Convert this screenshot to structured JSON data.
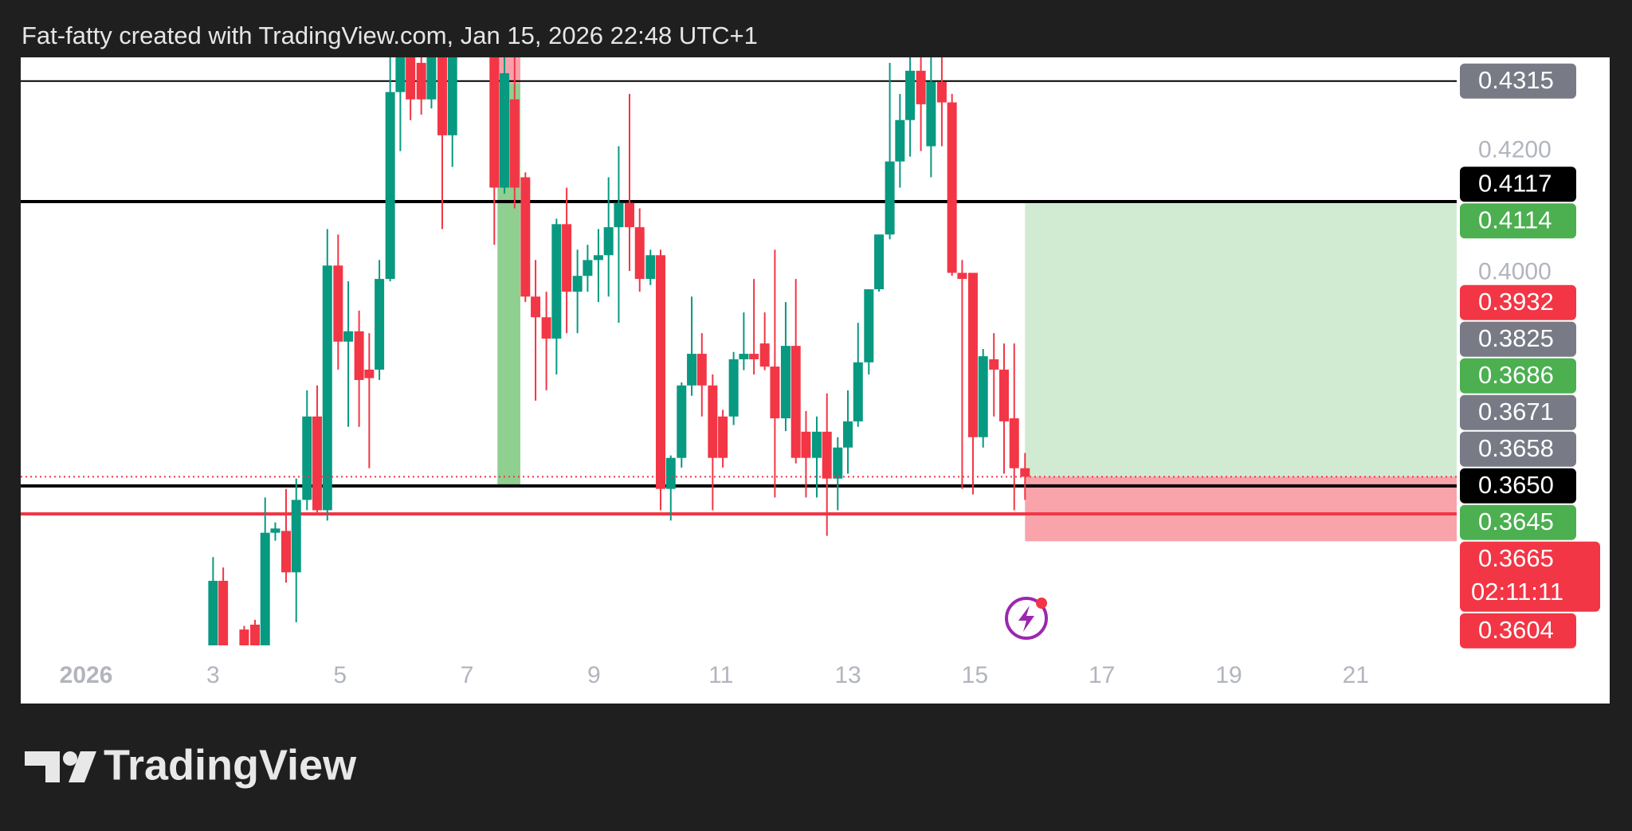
{
  "chart_data": {
    "type": "candlestick",
    "title": "Fat-fatty created with TradingView.com, Jan 15, 2026 22:48 UTC+1",
    "branding": "TradingView",
    "up_color": "#089981",
    "down_color": "#f23645",
    "xlim": [
      -0.03,
      22.59
    ],
    "ylim": [
      0.3388,
      0.4354
    ],
    "xticks": [
      {
        "value": 1,
        "label": "2026"
      },
      3,
      5,
      7,
      9,
      11,
      13,
      15,
      17,
      19,
      21
    ],
    "yticks": [
      {
        "value": 0.42,
        "label": "0.4200"
      },
      {
        "value": 0.4,
        "label": "0.4000"
      }
    ],
    "x": [
      3.0,
      3.16,
      3.49,
      3.66,
      3.82,
      3.98,
      4.15,
      4.31,
      4.48,
      4.64,
      4.8,
      4.97,
      5.13,
      5.3,
      5.46,
      5.62,
      5.79,
      5.95,
      6.11,
      6.28,
      6.44,
      6.61,
      6.77,
      7.43,
      7.59,
      7.75,
      7.92,
      8.08,
      8.25,
      8.41,
      8.57,
      8.74,
      8.9,
      9.07,
      9.23,
      9.39,
      9.56,
      9.72,
      9.89,
      10.05,
      10.21,
      10.38,
      10.54,
      10.7,
      10.87,
      11.03,
      11.2,
      11.36,
      11.52,
      11.69,
      11.85,
      12.02,
      12.18,
      12.34,
      12.51,
      12.67,
      12.84,
      13.0,
      13.16,
      13.33,
      13.49,
      13.66,
      13.82,
      13.98,
      14.15,
      14.31,
      14.48,
      14.64,
      14.8,
      14.97,
      15.13,
      15.3,
      15.46,
      15.62,
      15.79
    ],
    "open": [
      0.3388,
      0.3494,
      0.3414,
      0.3422,
      0.3388,
      0.3573,
      0.3576,
      0.3508,
      0.3627,
      0.3764,
      0.361,
      0.4012,
      0.3887,
      0.3904,
      0.3841,
      0.3841,
      0.399,
      0.4297,
      0.4354,
      0.4345,
      0.4285,
      0.4354,
      0.4226,
      0.4354,
      0.414,
      0.4285,
      0.4157,
      0.3961,
      0.3927,
      0.3892,
      0.408,
      0.3969,
      0.3995,
      0.4021,
      0.4029,
      0.4075,
      0.4115,
      0.4075,
      0.399,
      0.4029,
      0.3645,
      0.3696,
      0.3815,
      0.3867,
      0.3815,
      0.3764,
      0.3764,
      0.3858,
      0.3867,
      0.3884,
      0.3846,
      0.3761,
      0.388,
      0.3739,
      0.3696,
      0.3739,
      0.3662,
      0.3713,
      0.3756,
      0.3853,
      0.3973,
      0.4063,
      0.4183,
      0.4251,
      0.4332,
      0.4208,
      0.4314,
      0.428,
      0.4,
      0.4,
      0.373,
      0.3858,
      0.3841,
      0.3761,
      0.3679
    ],
    "high": [
      0.3533,
      0.3516,
      0.342,
      0.343,
      0.3631,
      0.359,
      0.3645,
      0.3662,
      0.3807,
      0.3815,
      0.4072,
      0.4063,
      0.3986,
      0.3938,
      0.3901,
      0.4021,
      0.4354,
      0.4354,
      0.4354,
      0.4354,
      0.4354,
      0.4354,
      0.4354,
      0.4354,
      0.4354,
      0.4354,
      0.4165,
      0.4021,
      0.3969,
      0.4089,
      0.414,
      0.4038,
      0.4046,
      0.4072,
      0.4157,
      0.4208,
      0.4294,
      0.4106,
      0.4038,
      0.4038,
      0.37,
      0.382,
      0.3961,
      0.3901,
      0.3833,
      0.3775,
      0.387,
      0.3935,
      0.399,
      0.3935,
      0.4038,
      0.3952,
      0.399,
      0.3773,
      0.3764,
      0.3802,
      0.373,
      0.3807,
      0.3918,
      0.3973,
      0.4063,
      0.4345,
      0.4294,
      0.4354,
      0.4354,
      0.4354,
      0.4354,
      0.4294,
      0.4021,
      0.4,
      0.3875,
      0.3901,
      0.3884,
      0.3884,
      0.3704
    ],
    "low": [
      0.338,
      0.338,
      0.338,
      0.338,
      0.338,
      0.356,
      0.3491,
      0.3426,
      0.361,
      0.3602,
      0.3593,
      0.3841,
      0.3747,
      0.3747,
      0.3679,
      0.3824,
      0.3986,
      0.42,
      0.4251,
      0.426,
      0.427,
      0.4072,
      0.4174,
      0.4046,
      0.413,
      0.4106,
      0.3952,
      0.379,
      0.3807,
      0.3833,
      0.3901,
      0.3901,
      0.3969,
      0.3952,
      0.3961,
      0.3918,
      0.4003,
      0.3969,
      0.398,
      0.361,
      0.3593,
      0.368,
      0.3798,
      0.3764,
      0.361,
      0.368,
      0.375,
      0.384,
      0.3833,
      0.384,
      0.3631,
      0.374,
      0.3687,
      0.3631,
      0.3631,
      0.3568,
      0.361,
      0.367,
      0.3747,
      0.3833,
      0.3969,
      0.4055,
      0.414,
      0.4191,
      0.42,
      0.4157,
      0.4208,
      0.3995,
      0.3645,
      0.3636,
      0.3713,
      0.3764,
      0.367,
      0.361,
      0.3627
    ],
    "close": [
      0.3494,
      0.3388,
      0.3388,
      0.3388,
      0.3573,
      0.358,
      0.3508,
      0.3627,
      0.3764,
      0.361,
      0.4012,
      0.3887,
      0.3904,
      0.3824,
      0.3827,
      0.399,
      0.4297,
      0.4354,
      0.4285,
      0.4285,
      0.4354,
      0.4226,
      0.4354,
      0.414,
      0.4328,
      0.414,
      0.3961,
      0.3927,
      0.3892,
      0.408,
      0.3969,
      0.3995,
      0.4021,
      0.4029,
      0.4075,
      0.4115,
      0.4075,
      0.399,
      0.4029,
      0.3645,
      0.3696,
      0.3815,
      0.3867,
      0.3815,
      0.3696,
      0.3696,
      0.3858,
      0.3867,
      0.3858,
      0.3846,
      0.3761,
      0.388,
      0.3696,
      0.3696,
      0.3739,
      0.3662,
      0.3713,
      0.3756,
      0.3853,
      0.3973,
      0.4063,
      0.4183,
      0.4251,
      0.4332,
      0.4277,
      0.4314,
      0.428,
      0.4,
      0.399,
      0.373,
      0.3863,
      0.3841,
      0.3756,
      0.3679,
      0.3665
    ],
    "levels": [
      {
        "value": 0.4315,
        "color": "#000000",
        "style": "thin"
      },
      {
        "value": 0.4117,
        "color": "#000000",
        "style": "thick"
      },
      {
        "value": 0.365,
        "color": "#000000",
        "style": "thick"
      },
      {
        "value": 0.3604,
        "color": "#f23645",
        "style": "thick"
      }
    ],
    "highlight": {
      "start": 7.48,
      "end": 7.84,
      "low": 0.365,
      "mid": 0.4311,
      "high": 0.4354,
      "color_low": "#8fcf8f",
      "color_high": "#f7a1aa"
    },
    "position": {
      "start": 15.79,
      "entry": 0.3665,
      "target": 0.4114,
      "stop": 0.3559,
      "profit_color": "#d1ebd3",
      "loss_color": "#f9a3ab"
    },
    "price_labels": [
      {
        "value": 0.4315,
        "label": "0.4315",
        "color": "#787b86"
      },
      {
        "value": 0.4117,
        "label": "0.4117",
        "color": "#000000"
      },
      {
        "value": 0.4114,
        "label": "0.4114",
        "color": "#4caf50"
      },
      {
        "value": 0.3932,
        "label": "0.3932",
        "color": "#f23645"
      },
      {
        "value": 0.3825,
        "label": "0.3825",
        "color": "#787b86"
      },
      {
        "value": 0.3686,
        "label": "0.3686",
        "color": "#4caf50"
      },
      {
        "value": 0.3671,
        "label": "0.3671",
        "color": "#787b86"
      },
      {
        "value": 0.3665,
        "label": "0.3665",
        "color": "#f23645",
        "countdown": "02:11:11"
      },
      {
        "value": 0.3658,
        "label": "0.3658",
        "color": "#787b86"
      },
      {
        "value": 0.365,
        "label": "0.3650",
        "color": "#000000"
      },
      {
        "value": 0.3645,
        "label": "0.3645",
        "color": "#4caf50"
      },
      {
        "value": 0.3604,
        "label": "0.3604",
        "color": "#f23645"
      }
    ]
  }
}
